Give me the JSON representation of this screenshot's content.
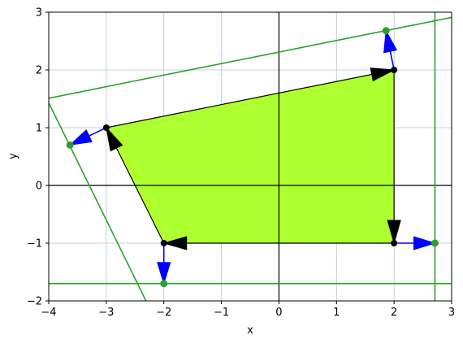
{
  "chart_data": {
    "type": "line",
    "title": "",
    "xlabel": "x",
    "ylabel": "y",
    "xlim": [
      -4,
      3
    ],
    "ylim": [
      -2,
      3
    ],
    "xticks": [
      -4,
      -3,
      -2,
      -1,
      0,
      1,
      2,
      3
    ],
    "yticks": [
      -2,
      -1,
      0,
      1,
      2,
      3
    ],
    "xtick_labels": [
      "−4",
      "−3",
      "−2",
      "−1",
      "0",
      "1",
      "2",
      "3"
    ],
    "ytick_labels": [
      "−2",
      "−1",
      "0",
      "1",
      "2",
      "3"
    ],
    "grid": true,
    "colors": {
      "polygon_fill": "#adff2f",
      "polygon_edge": "#000000",
      "normals": "#0000ff",
      "constraints": "#2ca02c",
      "grid": "#b0c4de",
      "axes_lines": "#000000"
    },
    "polygon": [
      [
        -3,
        1
      ],
      [
        2,
        2
      ],
      [
        2,
        -1
      ],
      [
        -2,
        -1
      ]
    ],
    "edge_arrows": [
      {
        "tip": [
          2,
          2
        ],
        "dir": [
          5,
          1
        ]
      },
      {
        "tip": [
          2,
          -1
        ],
        "dir": [
          0,
          -3
        ]
      },
      {
        "tip": [
          -2,
          -1
        ],
        "dir": [
          -4,
          0
        ]
      },
      {
        "tip": [
          -3,
          1
        ],
        "dir": [
          -1,
          2
        ]
      }
    ],
    "normal_arrows": [
      {
        "from": [
          2,
          2
        ],
        "to": [
          1.86,
          2.68
        ]
      },
      {
        "from": [
          2,
          -1
        ],
        "to": [
          2.71,
          -1
        ]
      },
      {
        "from": [
          -2,
          -1
        ],
        "to": [
          -2,
          -1.7
        ]
      },
      {
        "from": [
          -3,
          1
        ],
        "to": [
          -3.63,
          0.7
        ]
      }
    ],
    "constraint_points": [
      [
        1.86,
        2.68
      ],
      [
        2.71,
        -1
      ],
      [
        -2,
        -1.7
      ],
      [
        -3.63,
        0.7
      ]
    ],
    "constraint_lines": [
      {
        "type": "vertical",
        "x": 2.71
      },
      {
        "type": "horizontal",
        "y": -1.7
      },
      {
        "type": "segment",
        "p1": [
          -4,
          1.51
        ],
        "p2": [
          3,
          2.91
        ]
      },
      {
        "type": "segment",
        "p1": [
          -4,
          1.43
        ],
        "p2": [
          -2.31,
          -2
        ]
      }
    ]
  }
}
